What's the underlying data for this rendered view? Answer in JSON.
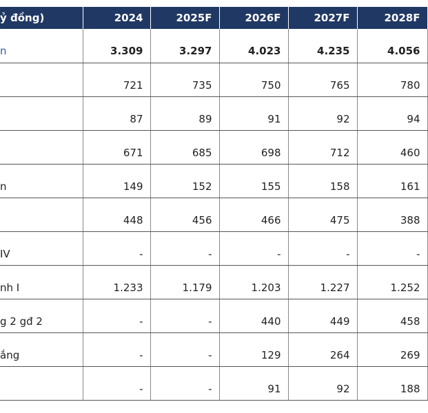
{
  "table": {
    "header": [
      "ỷ đồng)",
      "2024",
      "2025F",
      "2026F",
      "2027F",
      "2028F"
    ],
    "rows": [
      {
        "label": "n",
        "values": [
          "3.309",
          "3.297",
          "4.023",
          "4.235",
          "4.056"
        ]
      },
      {
        "values": [
          "721",
          "735",
          "750",
          "765",
          "780"
        ]
      },
      {
        "values": [
          "87",
          "89",
          "91",
          "92",
          "94"
        ]
      },
      {
        "values": [
          "671",
          "685",
          "698",
          "712",
          "460"
        ]
      },
      {
        "label": "n",
        "values": [
          "149",
          "152",
          "155",
          "158",
          "161"
        ]
      },
      {
        "values": [
          "448",
          "456",
          "466",
          "475",
          "388"
        ]
      },
      {
        "label": "IV",
        "values": [
          "-",
          "-",
          "-",
          "-",
          "-"
        ]
      },
      {
        "label": "nh I",
        "values": [
          "1.233",
          "1.179",
          "1.203",
          "1.227",
          "1.252"
        ]
      },
      {
        "label": "g 2 gđ 2",
        "values": [
          "-",
          "-",
          "440",
          "449",
          "458"
        ]
      },
      {
        "label": "ắng",
        "values": [
          "-",
          "-",
          "129",
          "264",
          "269"
        ]
      },
      {
        "values": [
          "-",
          "-",
          "91",
          "92",
          "188"
        ]
      }
    ]
  }
}
